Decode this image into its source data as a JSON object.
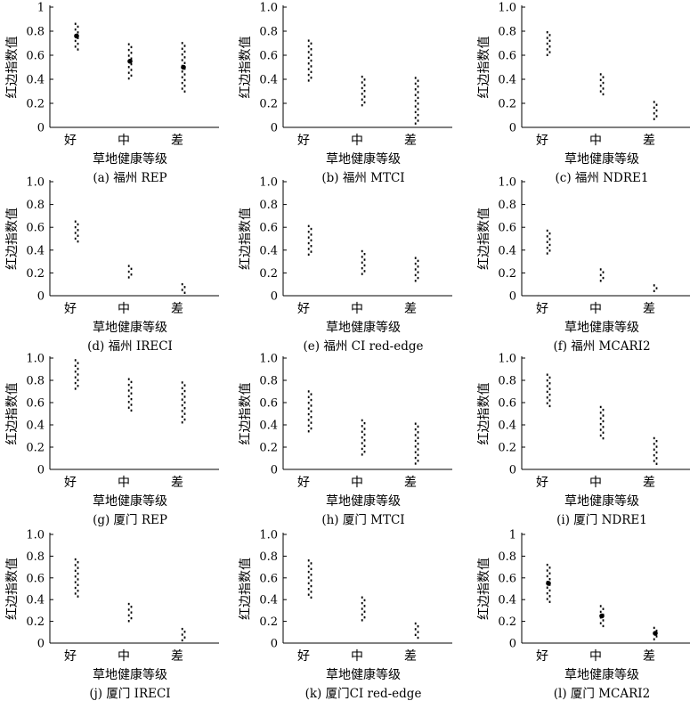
{
  "chart_data": [
    {
      "type": "scatter",
      "caption": "(a) 福州 REP",
      "ylabel": "红边指数值",
      "xlabel": "草地健康等级",
      "categories": [
        "好",
        "中",
        "差"
      ],
      "yticks": [
        "0",
        "0.2",
        "0.4",
        "0.6",
        "0.8",
        "1"
      ],
      "ylim": [
        0,
        1
      ],
      "ranges": [
        [
          0.65,
          0.87
        ],
        [
          0.41,
          0.7
        ],
        [
          0.3,
          0.71
        ]
      ],
      "means": [
        0.76,
        0.55,
        0.5
      ]
    },
    {
      "type": "scatter",
      "caption": "(b) 福州 MTCI",
      "ylabel": "红边指数值",
      "xlabel": "草地健康等级",
      "categories": [
        "好",
        "中",
        "差"
      ],
      "yticks": [
        "0",
        "0.2",
        "0.4",
        "0.6",
        "0.8",
        "1.0"
      ],
      "ylim": [
        0,
        1
      ],
      "ranges": [
        [
          0.38,
          0.73
        ],
        [
          0.17,
          0.43
        ],
        [
          0.02,
          0.42
        ]
      ],
      "means": null
    },
    {
      "type": "scatter",
      "caption": "(c) 福州 NDRE1",
      "ylabel": "红边指数值",
      "xlabel": "草地健康等级",
      "categories": [
        "好",
        "中",
        "差"
      ],
      "yticks": [
        "0",
        "0.2",
        "0.4",
        "0.6",
        "0.8",
        "1.0"
      ],
      "ylim": [
        0,
        1
      ],
      "ranges": [
        [
          0.61,
          0.8
        ],
        [
          0.28,
          0.45
        ],
        [
          0.06,
          0.22
        ]
      ],
      "means": null
    },
    {
      "type": "scatter",
      "caption": "(d) 福州 IRECI",
      "ylabel": "红边指数值",
      "xlabel": "草地健康等级",
      "categories": [
        "好",
        "中",
        "差"
      ],
      "yticks": [
        "0",
        "0.2",
        "0.4",
        "0.6",
        "0.8",
        "1.0"
      ],
      "ylim": [
        0,
        1
      ],
      "ranges": [
        [
          0.47,
          0.66
        ],
        [
          0.16,
          0.27
        ],
        [
          0.03,
          0.11
        ]
      ],
      "means": null
    },
    {
      "type": "scatter",
      "caption": "(e) 福州 CI red-edge",
      "ylabel": "红边指数值",
      "xlabel": "草地健康等级",
      "categories": [
        "好",
        "中",
        "差"
      ],
      "yticks": [
        "0",
        "0.2",
        "0.4",
        "0.6",
        "0.8",
        "1.0"
      ],
      "ylim": [
        0,
        1
      ],
      "ranges": [
        [
          0.36,
          0.62
        ],
        [
          0.19,
          0.4
        ],
        [
          0.14,
          0.34
        ]
      ],
      "means": null
    },
    {
      "type": "scatter",
      "caption": "(f) 福州 MCARI2",
      "ylabel": "红边指数值",
      "xlabel": "草地健康等级",
      "categories": [
        "好",
        "中",
        "差"
      ],
      "yticks": [
        "0",
        "0.2",
        "0.4",
        "0.6",
        "0.8",
        "1.0"
      ],
      "ylim": [
        0,
        1
      ],
      "ranges": [
        [
          0.36,
          0.58
        ],
        [
          0.13,
          0.24
        ],
        [
          0.03,
          0.1
        ]
      ],
      "means": null
    },
    {
      "type": "scatter",
      "caption": "(g) 厦门 REP",
      "ylabel": "红边指数值",
      "xlabel": "草地健康等级",
      "categories": [
        "好",
        "中",
        "差"
      ],
      "yticks": [
        "0",
        "0.2",
        "0.4",
        "0.6",
        "0.8",
        "1.0"
      ],
      "ylim": [
        0,
        1
      ],
      "ranges": [
        [
          0.71,
          0.99
        ],
        [
          0.52,
          0.82
        ],
        [
          0.42,
          0.79
        ]
      ],
      "means": null
    },
    {
      "type": "scatter",
      "caption": "(h) 厦门 MTCI",
      "ylabel": "红边指数值",
      "xlabel": "草地健康等级",
      "categories": [
        "好",
        "中",
        "差"
      ],
      "yticks": [
        "0",
        "0.2",
        "0.4",
        "0.6",
        "0.8",
        "1.0"
      ],
      "ylim": [
        0,
        1
      ],
      "ranges": [
        [
          0.33,
          0.71
        ],
        [
          0.14,
          0.45
        ],
        [
          0.04,
          0.42
        ]
      ],
      "means": null
    },
    {
      "type": "scatter",
      "caption": "(i) 厦门 NDRE1",
      "ylabel": "红边指数值",
      "xlabel": "草地健康等级",
      "categories": [
        "好",
        "中",
        "差"
      ],
      "yticks": [
        "0",
        "0.2",
        "0.4",
        "0.6",
        "0.8",
        "1.0"
      ],
      "ylim": [
        0,
        1
      ],
      "ranges": [
        [
          0.57,
          0.86
        ],
        [
          0.27,
          0.57
        ],
        [
          0.04,
          0.29
        ]
      ],
      "means": null
    },
    {
      "type": "scatter",
      "caption": "(j) 厦门 IRECI",
      "ylabel": "红边指数值",
      "xlabel": "草地健康等级",
      "categories": [
        "好",
        "中",
        "差"
      ],
      "yticks": [
        "0",
        "0.2",
        "0.4",
        "0.6",
        "0.8",
        "1.0"
      ],
      "ylim": [
        0,
        1
      ],
      "ranges": [
        [
          0.42,
          0.78
        ],
        [
          0.2,
          0.37
        ],
        [
          0.03,
          0.14
        ]
      ],
      "means": null
    },
    {
      "type": "scatter",
      "caption": "(k) 厦门CI red-edge",
      "ylabel": "红边指数值",
      "xlabel": "草地健康等级",
      "categories": [
        "好",
        "中",
        "差"
      ],
      "yticks": [
        "0",
        "0.2",
        "0.4",
        "0.6",
        "0.8",
        "1.0"
      ],
      "ylim": [
        0,
        1
      ],
      "ranges": [
        [
          0.42,
          0.77
        ],
        [
          0.2,
          0.43
        ],
        [
          0.04,
          0.19
        ]
      ],
      "means": null
    },
    {
      "type": "scatter",
      "caption": "(l) 厦门 MCARI2",
      "ylabel": "红边指数值",
      "xlabel": "草地健康等级",
      "categories": [
        "好",
        "中",
        "差"
      ],
      "yticks": [
        "0",
        "0.2",
        "0.4",
        "0.6",
        "0.8",
        "1"
      ],
      "ylim": [
        0,
        1
      ],
      "ranges": [
        [
          0.37,
          0.73
        ],
        [
          0.16,
          0.35
        ],
        [
          0.04,
          0.15
        ]
      ],
      "means": [
        0.55,
        0.25,
        0.09
      ]
    }
  ]
}
